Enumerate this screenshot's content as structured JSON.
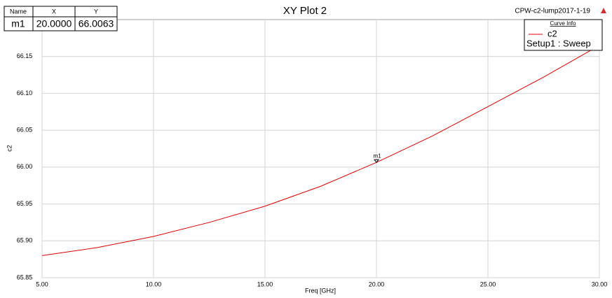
{
  "chart_data": {
    "type": "line",
    "title": "XY Plot 2",
    "subtitle": "CPW-c2-lump2017-1-19",
    "xlabel": "Freq [GHz]",
    "ylabel": "c2",
    "x": [
      5,
      7.5,
      10,
      12.5,
      15,
      17.5,
      20,
      22.5,
      25,
      27.5,
      30
    ],
    "series": [
      {
        "name": "c2",
        "color": "#e00000",
        "values": [
          65.88,
          65.891,
          65.906,
          65.925,
          65.947,
          65.974,
          66.0063,
          66.042,
          66.082,
          66.122,
          66.165
        ]
      }
    ],
    "legend_title": "Curve Info",
    "legend_setup": "Setup1 : Sweep",
    "xlim": [
      5,
      30
    ],
    "xticks": [
      {
        "value": 5,
        "label": "5.00"
      },
      {
        "value": 10,
        "label": "10.00"
      },
      {
        "value": 15,
        "label": "15.00"
      },
      {
        "value": 20,
        "label": "20.00"
      },
      {
        "value": 25,
        "label": "25.00"
      },
      {
        "value": 30,
        "label": "30.00"
      }
    ],
    "ylim": [
      65.85,
      66.2
    ],
    "yticks": [
      65.85,
      {
        "value": 65.9,
        "label": "65.90"
      },
      65.95,
      {
        "value": 66,
        "label": "66.00"
      },
      66.05,
      {
        "value": 66.1,
        "label": "66.10"
      },
      66.15
    ],
    "grid": true,
    "marker": {
      "label": "m1",
      "x": 20,
      "y": 66.0063
    },
    "marker_table": {
      "headers": [
        "Name",
        "X",
        "Y"
      ],
      "rows": [
        [
          "m1",
          "20.0000",
          "66.0063"
        ]
      ]
    }
  }
}
